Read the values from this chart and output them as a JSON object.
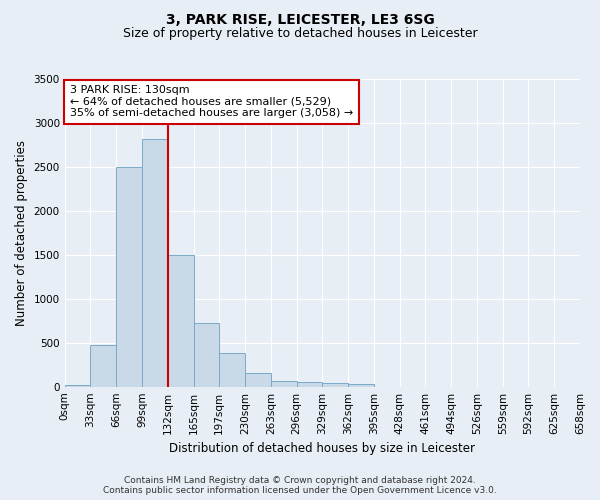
{
  "title": "3, PARK RISE, LEICESTER, LE3 6SG",
  "subtitle": "Size of property relative to detached houses in Leicester",
  "xlabel": "Distribution of detached houses by size in Leicester",
  "ylabel": "Number of detached properties",
  "bar_values": [
    20,
    470,
    2500,
    2820,
    1500,
    720,
    380,
    150,
    70,
    50,
    40,
    30,
    0,
    0,
    0,
    0,
    0,
    0,
    0,
    0
  ],
  "bin_labels": [
    "0sqm",
    "33sqm",
    "66sqm",
    "99sqm",
    "132sqm",
    "165sqm",
    "197sqm",
    "230sqm",
    "263sqm",
    "296sqm",
    "329sqm",
    "362sqm",
    "395sqm",
    "428sqm",
    "461sqm",
    "494sqm",
    "526sqm",
    "559sqm",
    "592sqm",
    "625sqm",
    "658sqm"
  ],
  "bar_color": "#c9d9e8",
  "bar_edge_color": "#7aaac8",
  "vline_x": 4,
  "vline_color": "#cc0000",
  "annotation_line1": "3 PARK RISE: 130sqm",
  "annotation_line2": "← 64% of detached houses are smaller (5,529)",
  "annotation_line3": "35% of semi-detached houses are larger (3,058) →",
  "annotation_box_color": "white",
  "annotation_box_edge": "#cc0000",
  "ylim": [
    0,
    3500
  ],
  "yticks": [
    0,
    500,
    1000,
    1500,
    2000,
    2500,
    3000,
    3500
  ],
  "bg_color": "#e8eef5",
  "plot_bg_color": "#e8eef5",
  "footer_text": "Contains HM Land Registry data © Crown copyright and database right 2024.\nContains public sector information licensed under the Open Government Licence v3.0.",
  "title_fontsize": 10,
  "subtitle_fontsize": 9,
  "axis_label_fontsize": 8.5,
  "tick_fontsize": 7.5,
  "annotation_fontsize": 8,
  "footer_fontsize": 6.5
}
